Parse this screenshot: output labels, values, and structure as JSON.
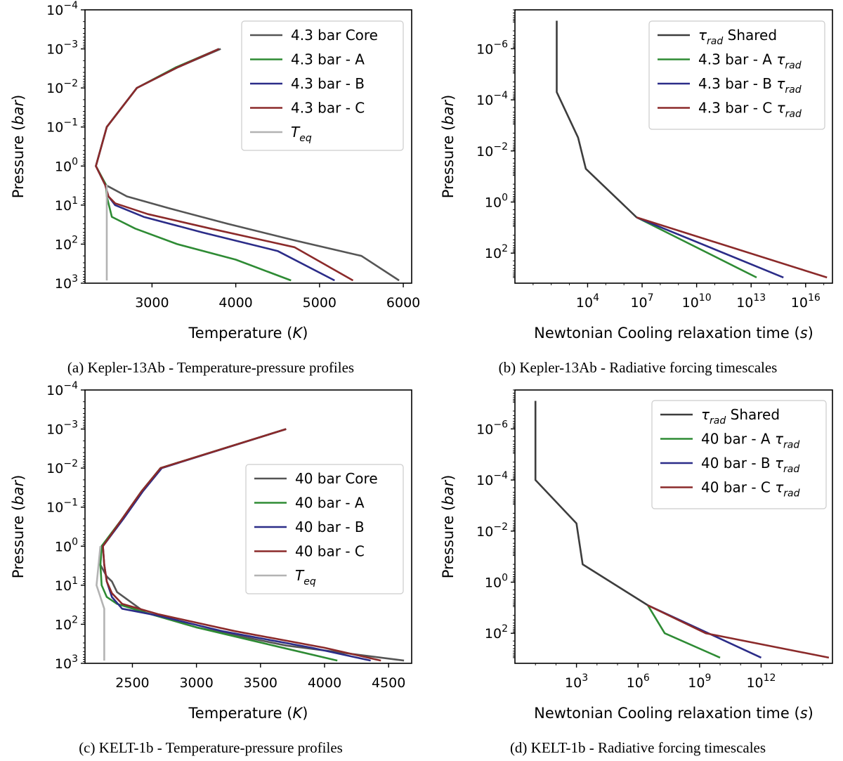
{
  "figure": {
    "captions": [
      "(a) Kepler-13Ab - Temperature-pressure profiles",
      "(b) Kepler-13Ab - Radiative forcing timescales",
      "(c) KELT-1b - Temperature-pressure profiles",
      "(d) KELT-1b - Radiative forcing timescales"
    ]
  },
  "colors": {
    "core": "#555555",
    "A": "#2e8b34",
    "B": "#2b2c88",
    "C": "#8b2a2a",
    "teq": "#b3b3b3",
    "shared": "#3d3d3d"
  },
  "chart_data": [
    {
      "type": "line",
      "id": "a",
      "title": "",
      "xlabel": "Temperature (K)",
      "ylabel": "Pressure (bar)",
      "xscale": "linear",
      "yscale": "log",
      "yinvert": true,
      "xlim": [
        2200,
        6100
      ],
      "ylim": [
        0.0001,
        1000
      ],
      "xticks": [
        3000,
        4000,
        5000,
        6000
      ],
      "xtick_labels": [
        "3000",
        "4000",
        "5000",
        "6000"
      ],
      "yticks": [
        0.0001,
        0.001,
        0.01,
        0.1,
        1,
        10,
        100,
        1000
      ],
      "ytick_labels": [
        [
          "10",
          "−4"
        ],
        [
          "10",
          "−3"
        ],
        [
          "10",
          "−2"
        ],
        [
          "10",
          "−1"
        ],
        [
          "10",
          "0"
        ],
        [
          "10",
          "1"
        ],
        [
          "10",
          "2"
        ],
        [
          "10",
          "3"
        ]
      ],
      "legend_position": "top-right",
      "series": [
        {
          "name": "4.3 bar Core",
          "color_key": "core",
          "x": [
            3820,
            3300,
            2820,
            2460,
            2330,
            2440,
            2700,
            3200,
            3900,
            4700,
            5500,
            5950
          ],
          "y": [
            0.001,
            0.003,
            0.01,
            0.1,
            1,
            3,
            6,
            12,
            30,
            80,
            200,
            850
          ]
        },
        {
          "name": "4.3 bar - A",
          "color_key": "A",
          "x": [
            3800,
            3280,
            2820,
            2460,
            2330,
            2450,
            2460,
            2520,
            2800,
            3300,
            4000,
            4660
          ],
          "y": [
            0.001,
            0.003,
            0.01,
            0.1,
            1,
            3,
            6,
            20,
            40,
            100,
            250,
            850
          ]
        },
        {
          "name": "4.3 bar - B",
          "color_key": "B",
          "x": [
            3800,
            3300,
            2820,
            2460,
            2330,
            2440,
            2480,
            2560,
            2900,
            3600,
            4500,
            5180
          ],
          "y": [
            0.001,
            0.003,
            0.01,
            0.1,
            1,
            3,
            6,
            10,
            20,
            50,
            150,
            850
          ]
        },
        {
          "name": "4.3 bar - C",
          "color_key": "C",
          "x": [
            3800,
            3300,
            2820,
            2460,
            2330,
            2440,
            2480,
            2560,
            2950,
            3700,
            4700,
            5400
          ],
          "y": [
            0.001,
            0.003,
            0.01,
            0.1,
            1,
            3,
            6,
            9,
            17,
            40,
            120,
            850
          ]
        },
        {
          "name": "T_eq",
          "label_base": "T",
          "label_sub": "eq",
          "color_key": "teq",
          "x": [
            2460,
            2460,
            2460
          ],
          "y": [
            3,
            100,
            850
          ]
        }
      ]
    },
    {
      "type": "line",
      "id": "b",
      "title": "",
      "xlabel": "Newtonian Cooling relaxation time (s)",
      "ylabel": "Pressure (bar)",
      "xscale": "log",
      "yscale": "log",
      "yinvert": true,
      "xlim": [
        1,
        3e+17
      ],
      "ylim": [
        3e-08,
        1500
      ],
      "xticks": [
        10000.0,
        10000000.0,
        10000000000.0,
        10000000000000.0,
        1e+16
      ],
      "xtick_labels": [
        [
          "10",
          "4"
        ],
        [
          "10",
          "7"
        ],
        [
          "10",
          "10"
        ],
        [
          "10",
          "13"
        ],
        [
          "10",
          "16"
        ]
      ],
      "yticks": [
        1e-06,
        0.0001,
        0.01,
        1,
        100
      ],
      "ytick_labels": [
        [
          "10",
          "−6"
        ],
        [
          "10",
          "−4"
        ],
        [
          "10",
          "−2"
        ],
        [
          "10",
          "0"
        ],
        [
          "10",
          "2"
        ]
      ],
      "legend_position": "top-right",
      "series": [
        {
          "name": "τ_rad Shared",
          "label_base": "τ",
          "label_sub": "rad",
          "label_suffix": " Shared",
          "color_key": "shared",
          "x": [
            200,
            200,
            3000,
            8000,
            5000000.0
          ],
          "y": [
            8e-08,
            5e-05,
            0.003,
            0.05,
            4
          ]
        },
        {
          "name": "4.3 bar - A τ_rad",
          "label_base": "4.3 bar - A τ",
          "label_sub": "rad",
          "color_key": "A",
          "x": [
            5000000.0,
            20000000000000.0
          ],
          "y": [
            4,
            900
          ]
        },
        {
          "name": "4.3 bar - B τ_rad",
          "label_base": "4.3 bar - B τ",
          "label_sub": "rad",
          "color_key": "B",
          "x": [
            5000000.0,
            600000000000000.0
          ],
          "y": [
            4,
            900
          ]
        },
        {
          "name": "4.3 bar - C τ_rad",
          "label_base": "4.3 bar - C τ",
          "label_sub": "rad",
          "color_key": "C",
          "x": [
            5000000.0,
            1.5e+17
          ],
          "y": [
            4,
            900
          ]
        }
      ]
    },
    {
      "type": "line",
      "id": "c",
      "title": "",
      "xlabel": "Temperature (K)",
      "ylabel": "Pressure (bar)",
      "xscale": "linear",
      "yscale": "log",
      "yinvert": true,
      "xlim": [
        2130,
        4680
      ],
      "ylim": [
        0.0001,
        1000
      ],
      "xticks": [
        2500,
        3000,
        3500,
        4000,
        4500
      ],
      "xtick_labels": [
        "2500",
        "3000",
        "3500",
        "4000",
        "4500"
      ],
      "yticks": [
        0.0001,
        0.001,
        0.01,
        0.1,
        1,
        10,
        100,
        1000
      ],
      "ytick_labels": [
        [
          "10",
          "−4"
        ],
        [
          "10",
          "−3"
        ],
        [
          "10",
          "−2"
        ],
        [
          "10",
          "−1"
        ],
        [
          "10",
          "0"
        ],
        [
          "10",
          "1"
        ],
        [
          "10",
          "2"
        ],
        [
          "10",
          "3"
        ]
      ],
      "legend_position": "center-right",
      "series": [
        {
          "name": "40 bar Core",
          "color_key": "core",
          "x": [
            3700,
            2720,
            2570,
            2420,
            2260,
            2250,
            2300,
            2340,
            2380,
            2600,
            3000,
            3700,
            4620
          ],
          "y": [
            0.001,
            0.01,
            0.04,
            0.2,
            1,
            3,
            6,
            8,
            15,
            50,
            120,
            350,
            850
          ]
        },
        {
          "name": "40 bar - A",
          "color_key": "A",
          "x": [
            3700,
            2720,
            2570,
            2420,
            2260,
            2250,
            2260,
            2300,
            2380,
            2600,
            3000,
            3600,
            4100
          ],
          "y": [
            0.001,
            0.01,
            0.04,
            0.2,
            1,
            3,
            10,
            20,
            30,
            50,
            120,
            350,
            850
          ]
        },
        {
          "name": "40 bar - B",
          "color_key": "B",
          "x": [
            3700,
            2730,
            2580,
            2430,
            2270,
            2280,
            2300,
            2340,
            2420,
            2700,
            3200,
            3900,
            4360
          ],
          "y": [
            0.001,
            0.01,
            0.04,
            0.2,
            1,
            3,
            8,
            20,
            40,
            60,
            150,
            400,
            850
          ]
        },
        {
          "name": "40 bar - C",
          "color_key": "C",
          "x": [
            3700,
            2720,
            2570,
            2420,
            2270,
            2280,
            2300,
            2340,
            2420,
            2700,
            3300,
            4000,
            4440
          ],
          "y": [
            0.001,
            0.01,
            0.04,
            0.2,
            1,
            3,
            8,
            16,
            30,
            55,
            150,
            400,
            850
          ]
        },
        {
          "name": "T_eq",
          "label_base": "T",
          "label_sub": "eq",
          "color_key": "teq",
          "x": [
            2250,
            2220,
            2280,
            2280,
            2280
          ],
          "y": [
            1,
            10,
            40,
            200,
            850
          ]
        }
      ]
    },
    {
      "type": "line",
      "id": "d",
      "title": "",
      "xlabel": "Newtonian Cooling relaxation time (s)",
      "ylabel": "Pressure (bar)",
      "xscale": "log",
      "yscale": "log",
      "yinvert": true,
      "xlim": [
        1,
        3000000000000000.0
      ],
      "ylim": [
        3e-08,
        1500
      ],
      "xticks": [
        1000.0,
        1000000.0,
        1000000000.0,
        1000000000000.0
      ],
      "xtick_labels": [
        [
          "10",
          "3"
        ],
        [
          "10",
          "6"
        ],
        [
          "10",
          "9"
        ],
        [
          "10",
          "12"
        ]
      ],
      "yticks": [
        1e-06,
        0.0001,
        0.01,
        1,
        100
      ],
      "ytick_labels": [
        [
          "10",
          "−6"
        ],
        [
          "10",
          "−4"
        ],
        [
          "10",
          "−2"
        ],
        [
          "10",
          "0"
        ],
        [
          "10",
          "2"
        ]
      ],
      "legend_position": "top-right",
      "series": [
        {
          "name": "τ_rad Shared",
          "label_base": "τ",
          "label_sub": "rad",
          "label_suffix": " Shared",
          "color_key": "shared",
          "x": [
            10,
            10,
            1000,
            2000,
            3000000.0
          ],
          "y": [
            8e-08,
            0.0001,
            0.005,
            0.2,
            8
          ]
        },
        {
          "name": "40 bar - A τ_rad",
          "label_base": "40 bar - A τ",
          "label_sub": "rad",
          "color_key": "A",
          "x": [
            3000000.0,
            20000000.0,
            10000000000.0
          ],
          "y": [
            8,
            100,
            900
          ]
        },
        {
          "name": "40 bar - B τ_rad",
          "label_base": "40 bar - B τ",
          "label_sub": "rad",
          "color_key": "B",
          "x": [
            3000000.0,
            1000000000000.0
          ],
          "y": [
            8,
            900
          ]
        },
        {
          "name": "40 bar - C τ_rad",
          "label_base": "40 bar - C τ",
          "label_sub": "rad",
          "color_key": "C",
          "x": [
            3000000.0,
            2000000000.0,
            2000000000000000.0
          ],
          "y": [
            8,
            100,
            900
          ]
        }
      ]
    }
  ]
}
